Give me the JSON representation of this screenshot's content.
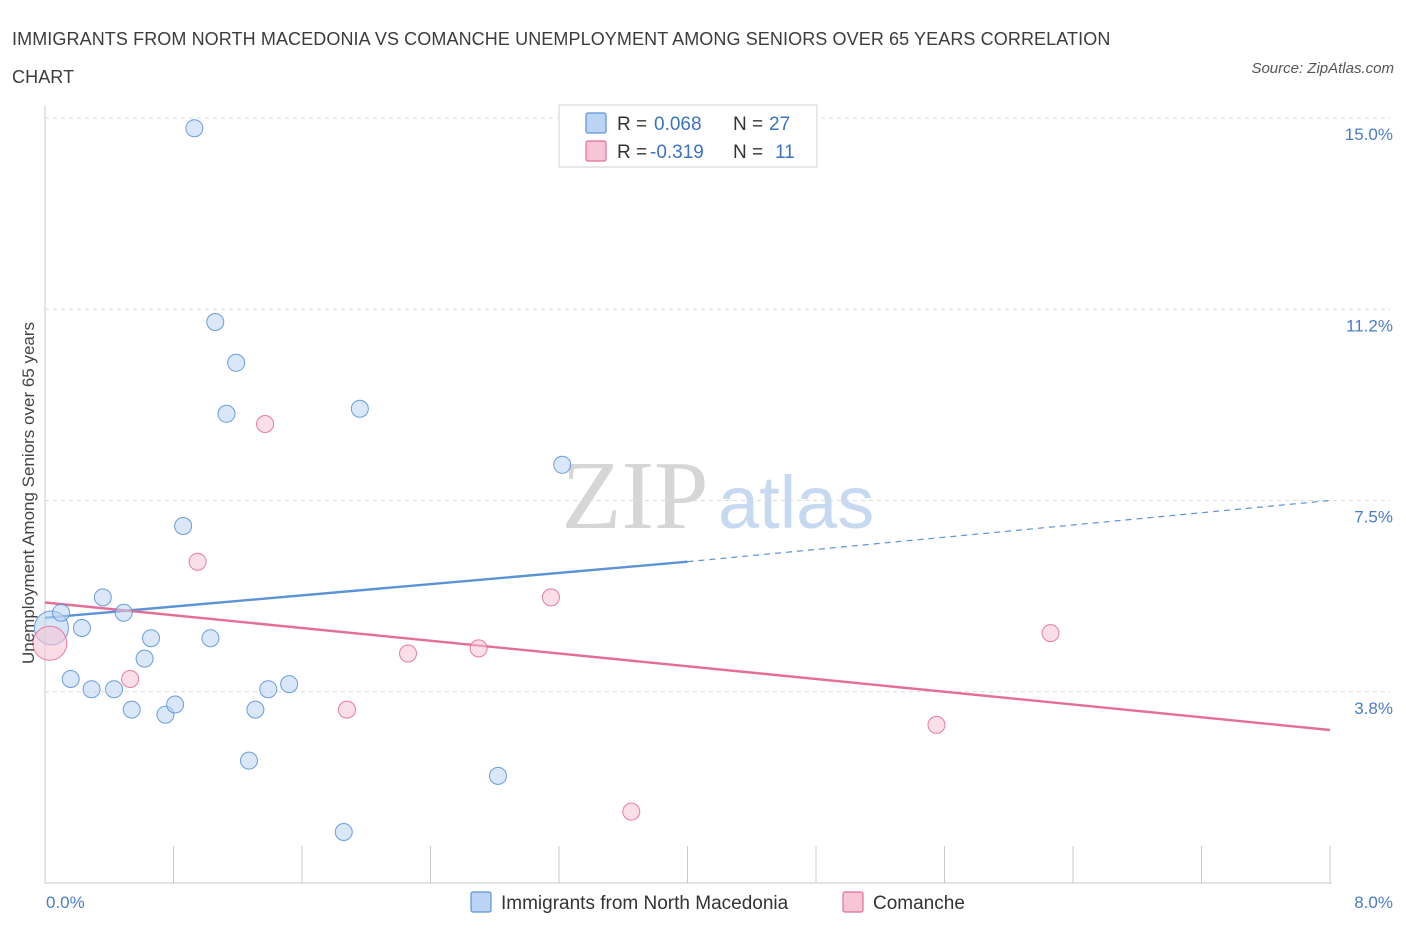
{
  "title": "IMMIGRANTS FROM NORTH MACEDONIA VS COMANCHE UNEMPLOYMENT AMONG SENIORS OVER 65 YEARS CORRELATION CHART",
  "source": "Source: ZipAtlas.com",
  "colors": {
    "blue": "#5b93d6",
    "blue_fill": "#bcd4f3",
    "pink": "#e56e97",
    "pink_fill": "#f7c5d5",
    "tick_text": "#4a7cc9",
    "grid": "#d9d9d9"
  },
  "legend": {
    "rows": [
      {
        "r_label": "R =",
        "r_value": "0.068",
        "n_label": "N =",
        "n_value": "27",
        "series": "blue"
      },
      {
        "r_label": "R =",
        "r_value": "-0.319",
        "n_label": "N =",
        "n_value": "11",
        "series": "pink"
      }
    ]
  },
  "watermark": {
    "zip": "ZIP",
    "atlas": "atlas"
  },
  "chart_data": {
    "type": "scatter",
    "title": "IMMIGRANTS FROM NORTH MACEDONIA VS COMANCHE UNEMPLOYMENT AMONG SENIORS OVER 65 YEARS CORRELATION CHART",
    "xlabel": "",
    "ylabel": "Unemployment Among Seniors over 65 years",
    "xlim": [
      0,
      8
    ],
    "ylim": [
      0,
      15
    ],
    "x_tick_labels": [
      "0.0%",
      "8.0%"
    ],
    "y_ticks": [
      {
        "value": 15.0,
        "label": "15.0%"
      },
      {
        "value": 11.25,
        "label": "11.2%"
      },
      {
        "value": 7.5,
        "label": "7.5%"
      },
      {
        "value": 3.75,
        "label": "3.8%"
      }
    ],
    "grid": "horizontal-dashed",
    "legend_position": "top-center",
    "series": [
      {
        "name": "Immigrants from North Macedonia",
        "color": "blue",
        "points": [
          {
            "x": 0.04,
            "y": 5.0,
            "big": true
          },
          {
            "x": 0.1,
            "y": 5.3
          },
          {
            "x": 0.23,
            "y": 5.0
          },
          {
            "x": 0.16,
            "y": 4.0
          },
          {
            "x": 0.36,
            "y": 5.6
          },
          {
            "x": 0.29,
            "y": 3.8
          },
          {
            "x": 0.43,
            "y": 3.8
          },
          {
            "x": 0.49,
            "y": 5.3
          },
          {
            "x": 0.54,
            "y": 3.4
          },
          {
            "x": 0.62,
            "y": 4.4
          },
          {
            "x": 0.66,
            "y": 4.8
          },
          {
            "x": 0.75,
            "y": 3.3
          },
          {
            "x": 0.81,
            "y": 3.5
          },
          {
            "x": 0.86,
            "y": 7.0
          },
          {
            "x": 0.93,
            "y": 14.8
          },
          {
            "x": 1.03,
            "y": 4.8
          },
          {
            "x": 1.06,
            "y": 11.0
          },
          {
            "x": 1.13,
            "y": 9.2
          },
          {
            "x": 1.19,
            "y": 10.2
          },
          {
            "x": 1.27,
            "y": 2.4
          },
          {
            "x": 1.31,
            "y": 3.4
          },
          {
            "x": 1.39,
            "y": 3.8
          },
          {
            "x": 1.52,
            "y": 3.9
          },
          {
            "x": 1.86,
            "y": 1.0
          },
          {
            "x": 1.96,
            "y": 9.3
          },
          {
            "x": 2.82,
            "y": 2.1
          },
          {
            "x": 3.22,
            "y": 8.2
          }
        ],
        "trend": {
          "x0": 0,
          "y0": 5.2,
          "x1": 4.0,
          "y1": 6.3,
          "dash_x1": 8.0,
          "dash_y1": 7.5
        }
      },
      {
        "name": "Comanche",
        "color": "pink",
        "points": [
          {
            "x": 0.03,
            "y": 4.7,
            "big": true
          },
          {
            "x": 0.53,
            "y": 4.0
          },
          {
            "x": 0.95,
            "y": 6.3
          },
          {
            "x": 1.37,
            "y": 9.0
          },
          {
            "x": 1.88,
            "y": 3.4
          },
          {
            "x": 2.26,
            "y": 4.5
          },
          {
            "x": 2.7,
            "y": 4.6
          },
          {
            "x": 3.15,
            "y": 5.6
          },
          {
            "x": 3.65,
            "y": 1.4
          },
          {
            "x": 5.55,
            "y": 3.1
          },
          {
            "x": 6.26,
            "y": 4.9
          }
        ],
        "trend": {
          "x0": 0,
          "y0": 5.5,
          "x1": 8.0,
          "y1": 3.0
        }
      }
    ]
  }
}
